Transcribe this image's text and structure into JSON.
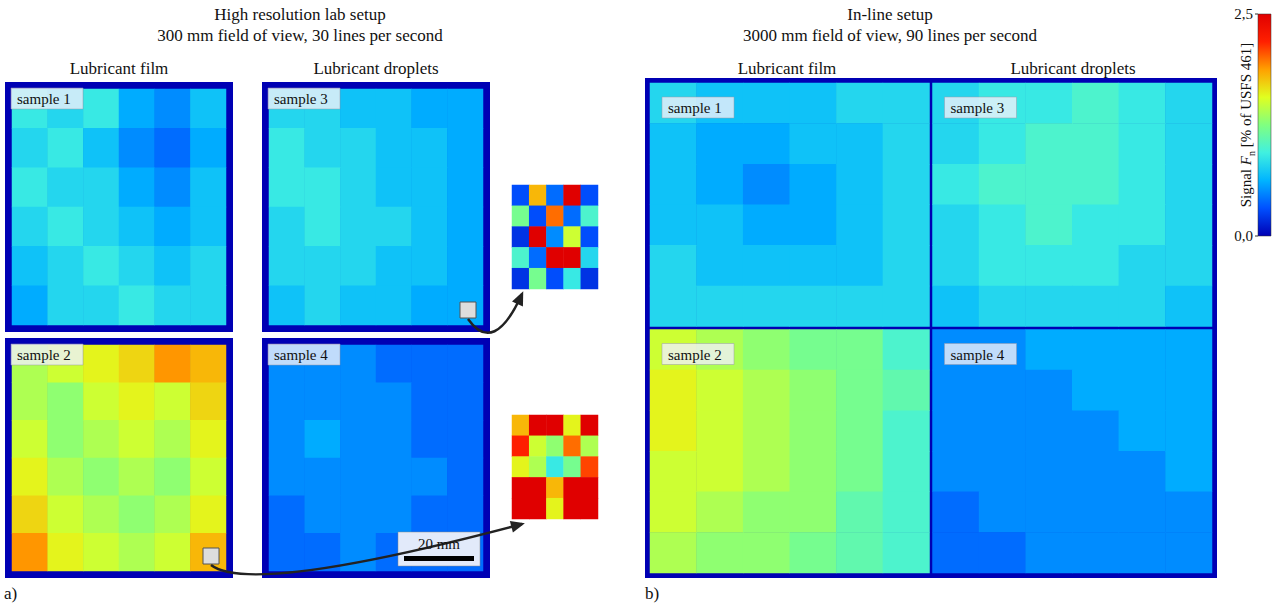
{
  "chart_data": {
    "type": "heatmap",
    "panels": [
      {
        "letter": "a)",
        "title": "High resolution lab setup",
        "subtitle": "300 mm field of view, 30 lines per second",
        "columns": [
          "Lubricant film",
          "Lubricant droplets"
        ],
        "scale_bar": "20 mm",
        "samples": [
          {
            "label": "sample 1",
            "cells": [
              [
                0.9,
                0.8,
                0.9,
                0.6,
                0.5,
                0.7
              ],
              [
                0.8,
                0.9,
                0.7,
                0.5,
                0.4,
                0.6
              ],
              [
                0.9,
                0.8,
                0.8,
                0.6,
                0.5,
                0.7
              ],
              [
                0.8,
                0.9,
                0.8,
                0.7,
                0.6,
                0.7
              ],
              [
                0.7,
                0.8,
                0.9,
                0.8,
                0.7,
                0.8
              ],
              [
                0.6,
                0.8,
                0.8,
                0.9,
                0.8,
                0.8
              ]
            ]
          },
          {
            "label": "sample 2",
            "cells": [
              [
                1.4,
                1.5,
                1.6,
                1.7,
                1.9,
                1.8
              ],
              [
                1.4,
                1.3,
                1.5,
                1.6,
                1.5,
                1.7
              ],
              [
                1.5,
                1.3,
                1.4,
                1.5,
                1.4,
                1.6
              ],
              [
                1.6,
                1.4,
                1.3,
                1.4,
                1.3,
                1.5
              ],
              [
                1.7,
                1.5,
                1.4,
                1.3,
                1.4,
                1.6
              ],
              [
                1.9,
                1.6,
                1.5,
                1.4,
                1.5,
                1.8
              ]
            ],
            "zoom": [
              [
                1.8,
                2.5,
                2.5,
                1.6,
                2.5
              ],
              [
                2.2,
                1.5,
                1.3,
                2.0,
                1.4
              ],
              [
                1.6,
                1.4,
                0.9,
                1.2,
                2.1
              ],
              [
                2.5,
                2.5,
                1.8,
                2.5,
                2.5
              ],
              [
                2.5,
                2.5,
                1.6,
                2.5,
                2.5
              ]
            ]
          },
          {
            "label": "sample 3",
            "cells": [
              [
                0.8,
                0.8,
                0.7,
                0.7,
                0.6,
                0.6
              ],
              [
                0.9,
                0.8,
                0.8,
                0.7,
                0.7,
                0.6
              ],
              [
                0.9,
                0.9,
                0.8,
                0.7,
                0.7,
                0.6
              ],
              [
                0.8,
                0.9,
                0.8,
                0.8,
                0.7,
                0.6
              ],
              [
                0.8,
                0.8,
                0.8,
                0.7,
                0.7,
                0.6
              ],
              [
                0.7,
                0.8,
                0.7,
                0.7,
                0.6,
                0.6
              ]
            ],
            "zoom": [
              [
                0.3,
                1.8,
                0.4,
                2.5,
                0.3
              ],
              [
                1.2,
                0.3,
                2.0,
                0.4,
                1.0
              ],
              [
                0.2,
                2.5,
                0.5,
                1.5,
                0.3
              ],
              [
                1.0,
                0.4,
                2.5,
                2.5,
                0.8
              ],
              [
                0.2,
                1.2,
                0.3,
                0.9,
                0.2
              ]
            ]
          },
          {
            "label": "sample 4",
            "cells": [
              [
                0.5,
                0.5,
                0.5,
                0.4,
                0.4,
                0.4
              ],
              [
                0.5,
                0.5,
                0.5,
                0.5,
                0.4,
                0.4
              ],
              [
                0.5,
                0.6,
                0.5,
                0.5,
                0.4,
                0.4
              ],
              [
                0.5,
                0.5,
                0.5,
                0.5,
                0.5,
                0.4
              ],
              [
                0.4,
                0.5,
                0.5,
                0.5,
                0.4,
                0.4
              ],
              [
                0.4,
                0.4,
                0.5,
                0.4,
                0.4,
                0.4
              ]
            ]
          }
        ]
      },
      {
        "letter": "b)",
        "title": "In-line setup",
        "subtitle": "3000 mm field of view, 90 lines per second",
        "columns": [
          "Lubricant film",
          "Lubricant droplets"
        ],
        "samples": [
          {
            "label": "sample 1",
            "cells": [
              [
                0.8,
                0.7,
                0.7,
                0.7,
                0.8,
                0.8
              ],
              [
                0.7,
                0.6,
                0.6,
                0.7,
                0.7,
                0.8
              ],
              [
                0.7,
                0.6,
                0.5,
                0.6,
                0.7,
                0.8
              ],
              [
                0.7,
                0.7,
                0.6,
                0.6,
                0.7,
                0.8
              ],
              [
                0.8,
                0.7,
                0.7,
                0.7,
                0.7,
                0.8
              ],
              [
                0.8,
                0.8,
                0.8,
                0.8,
                0.8,
                0.8
              ]
            ]
          },
          {
            "label": "sample 2",
            "cells": [
              [
                1.5,
                1.4,
                1.3,
                1.2,
                1.2,
                1.0
              ],
              [
                1.6,
                1.5,
                1.4,
                1.3,
                1.2,
                1.1
              ],
              [
                1.6,
                1.5,
                1.4,
                1.3,
                1.2,
                1.0
              ],
              [
                1.5,
                1.5,
                1.4,
                1.3,
                1.2,
                1.0
              ],
              [
                1.5,
                1.4,
                1.3,
                1.3,
                1.1,
                1.0
              ],
              [
                1.4,
                1.3,
                1.3,
                1.2,
                1.1,
                1.0
              ]
            ]
          },
          {
            "label": "sample 3",
            "cells": [
              [
                0.8,
                0.9,
                0.9,
                1.0,
                0.9,
                0.8
              ],
              [
                0.8,
                0.9,
                1.0,
                1.0,
                0.9,
                0.8
              ],
              [
                0.9,
                1.0,
                1.0,
                1.0,
                0.9,
                0.8
              ],
              [
                0.8,
                0.9,
                1.0,
                0.9,
                0.9,
                0.8
              ],
              [
                0.8,
                0.9,
                0.9,
                0.9,
                0.8,
                0.8
              ],
              [
                0.7,
                0.8,
                0.8,
                0.8,
                0.8,
                0.7
              ]
            ]
          },
          {
            "label": "sample 4",
            "cells": [
              [
                0.5,
                0.5,
                0.6,
                0.6,
                0.6,
                0.6
              ],
              [
                0.5,
                0.5,
                0.5,
                0.6,
                0.6,
                0.6
              ],
              [
                0.5,
                0.5,
                0.5,
                0.5,
                0.6,
                0.6
              ],
              [
                0.5,
                0.5,
                0.5,
                0.5,
                0.5,
                0.6
              ],
              [
                0.4,
                0.5,
                0.5,
                0.5,
                0.5,
                0.5
              ],
              [
                0.4,
                0.4,
                0.5,
                0.5,
                0.5,
                0.5
              ]
            ]
          }
        ]
      }
    ],
    "colorbar": {
      "title": {
        "text": "Signal",
        "symbol": "F",
        "subscript": "n",
        "unit": "[% of USFS 461]"
      },
      "range": [
        0,
        2.5
      ],
      "ticks": [
        {
          "value": 0,
          "label": "0,0"
        },
        {
          "value": 2.5,
          "label": "2,5"
        }
      ]
    }
  }
}
